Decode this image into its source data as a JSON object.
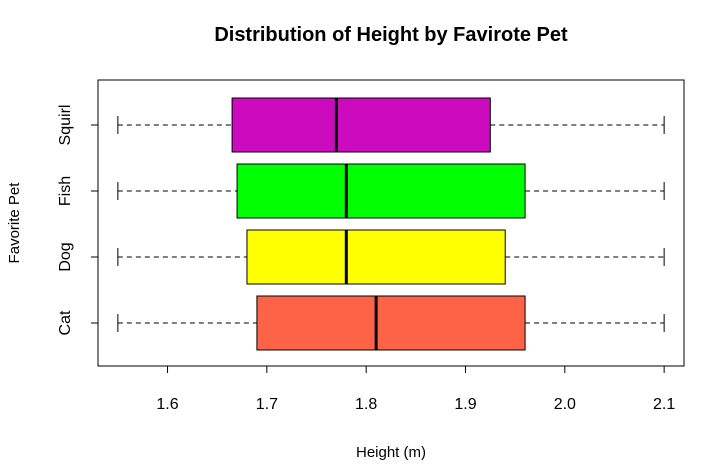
{
  "chart_data": {
    "type": "boxplot",
    "orientation": "horizontal",
    "title": "Distribution of Height by Favirote Pet",
    "xlabel": "Height (m)",
    "ylabel": "Favorite Pet",
    "xlim": [
      1.53,
      2.12
    ],
    "x_ticks": [
      "1.6",
      "1.7",
      "1.8",
      "1.9",
      "2.0",
      "2.1"
    ],
    "categories": [
      "Cat",
      "Dog",
      "Fish",
      "Squirl"
    ],
    "boxes": [
      {
        "category": "Cat",
        "min": 1.55,
        "q1": 1.69,
        "median": 1.81,
        "q3": 1.96,
        "max": 2.1,
        "color": "#FF6347"
      },
      {
        "category": "Dog",
        "min": 1.55,
        "q1": 1.68,
        "median": 1.78,
        "q3": 1.94,
        "max": 2.1,
        "color": "#FFFF00"
      },
      {
        "category": "Fish",
        "min": 1.55,
        "q1": 1.67,
        "median": 1.78,
        "q3": 1.96,
        "max": 2.1,
        "color": "#00FF00"
      },
      {
        "category": "Squirl",
        "min": 1.55,
        "q1": 1.665,
        "median": 1.77,
        "q3": 1.925,
        "max": 2.1,
        "color": "#CC0BBF"
      }
    ],
    "grid": false,
    "legend": "none"
  }
}
